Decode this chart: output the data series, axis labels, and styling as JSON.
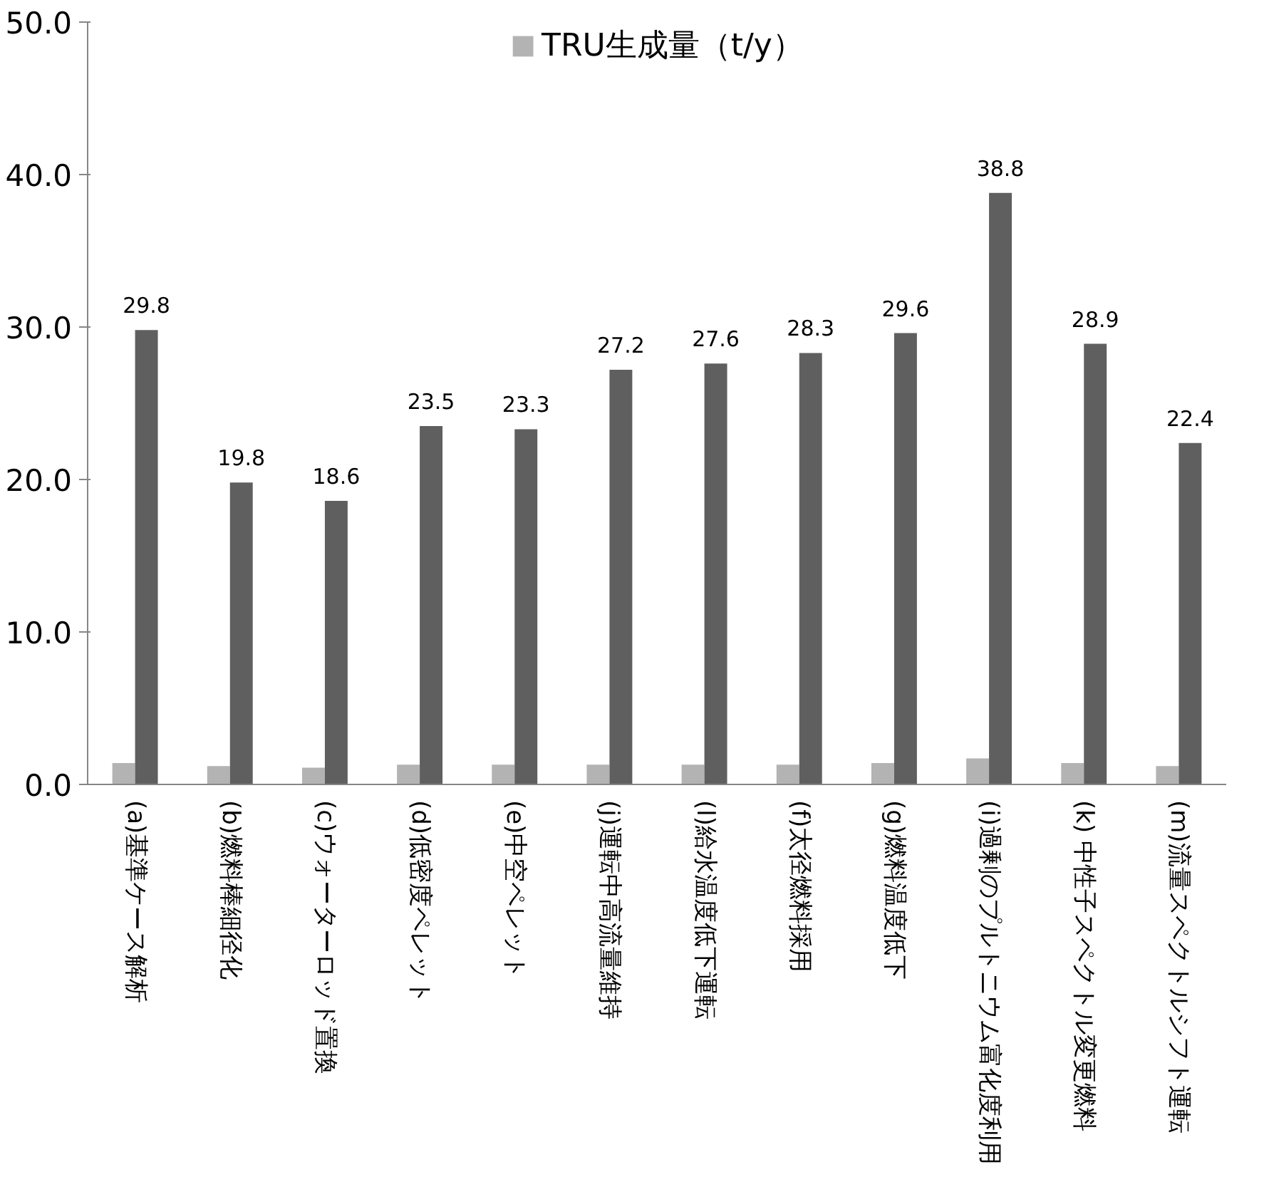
{
  "chart_data": {
    "type": "bar",
    "categories": [
      "(a)基準ケース解析",
      "(b)燃料棒細径化",
      "(c)ウォーターロッド置換",
      "(d)低密度ペレット",
      "(e)中空ペレット",
      "(j)運転中高流量維持",
      "(l)給水温度低下運転",
      "(f)太径燃料採用",
      "(g)燃料温度低下",
      "(i)過剰のプルトニウム富化度利用",
      "(k) 中性子スペクトル変更燃料",
      "(m)流量スペクトルシフト運転"
    ],
    "series": [
      {
        "name": "TRU生成量（t/y）",
        "color": "#b3b3b3",
        "values": [
          1.4,
          1.2,
          1.1,
          1.3,
          1.3,
          1.3,
          1.3,
          1.3,
          1.4,
          1.7,
          1.4,
          1.2
        ]
      },
      {
        "color": "#5f5f5f",
        "values": [
          29.8,
          19.8,
          18.6,
          23.5,
          23.3,
          27.2,
          27.6,
          28.3,
          29.6,
          38.8,
          28.9,
          22.4
        ],
        "value_labels": [
          "29.8",
          "19.8",
          "18.6",
          "23.5",
          "23.3",
          "27.2",
          "27.6",
          "28.3",
          "29.6",
          "38.8",
          "28.9",
          "22.4"
        ]
      }
    ],
    "ylim": [
      0,
      50
    ],
    "yticks": [
      "0.0",
      "10.0",
      "20.0",
      "30.0",
      "40.0",
      "50.0"
    ],
    "grid": false,
    "legend": "top"
  }
}
